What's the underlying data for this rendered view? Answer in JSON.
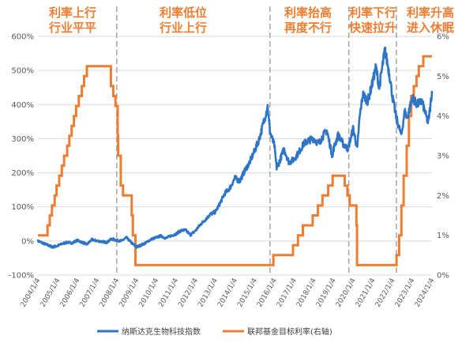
{
  "chart_data": {
    "type": "line",
    "title": "",
    "x_range": [
      "2004/1/4",
      "2024/1/4"
    ],
    "x_tick_labels": [
      "2004/1/4",
      "2005/1/4",
      "2006/1/4",
      "2007/1/4",
      "2008/1/4",
      "2009/1/4",
      "2010/1/4",
      "2011/1/4",
      "2012/1/4",
      "2013/1/4",
      "2014/1/4",
      "2015/1/4",
      "2016/1/4",
      "2017/1/4",
      "2018/1/4",
      "2019/1/4",
      "2020/1/4",
      "2021/1/4",
      "2022/1/4",
      "2023/1/4",
      "2024/1/4"
    ],
    "y_left": {
      "ticks": [
        -100,
        0,
        100,
        200,
        300,
        400,
        500,
        600
      ],
      "tick_labels": [
        "-100%",
        "0%",
        "100%",
        "200%",
        "300%",
        "400%",
        "500%",
        "600%"
      ],
      "range": [
        -100,
        600
      ]
    },
    "y_right": {
      "ticks": [
        0,
        1,
        2,
        3,
        4,
        5,
        6
      ],
      "tick_labels": [
        "0%",
        "1%",
        "2%",
        "3%",
        "4%",
        "5%",
        "6%"
      ],
      "range": [
        0,
        6
      ]
    },
    "grid": true,
    "legend_position": "bottom",
    "dividers": [
      "2008/1/4",
      "2015/10/15",
      "2019/10/15",
      "2022/3/15"
    ],
    "annotations": [
      {
        "lines": [
          "利率上行",
          "行业平平"
        ]
      },
      {
        "lines": [
          "利率低位",
          "行业上行"
        ]
      },
      {
        "lines": [
          "利率抬高",
          "再度不行"
        ]
      },
      {
        "lines": [
          "利率下行",
          "快速拉升"
        ]
      },
      {
        "lines": [
          "利率升高",
          "进入休眠"
        ]
      }
    ],
    "series": [
      {
        "name": "纳斯达克生物科技指数",
        "axis": "left",
        "color": "#2E75C8",
        "points": [
          [
            "2004-01-04",
            0
          ],
          [
            "2004-04-01",
            -6
          ],
          [
            "2004-07-01",
            -12
          ],
          [
            "2004-10-01",
            -18
          ],
          [
            "2005-01-04",
            -14
          ],
          [
            "2005-04-01",
            -8
          ],
          [
            "2005-07-01",
            -4
          ],
          [
            "2005-10-01",
            -6
          ],
          [
            "2006-01-04",
            2
          ],
          [
            "2006-04-01",
            -4
          ],
          [
            "2006-07-01",
            -10
          ],
          [
            "2006-10-01",
            4
          ],
          [
            "2007-01-04",
            0
          ],
          [
            "2007-04-01",
            -2
          ],
          [
            "2007-07-01",
            -4
          ],
          [
            "2007-10-01",
            6
          ],
          [
            "2008-01-04",
            2
          ],
          [
            "2008-04-01",
            0
          ],
          [
            "2008-07-01",
            10
          ],
          [
            "2008-10-01",
            -5
          ],
          [
            "2009-01-04",
            -18
          ],
          [
            "2009-04-01",
            -12
          ],
          [
            "2009-07-01",
            -5
          ],
          [
            "2009-10-01",
            5
          ],
          [
            "2010-01-04",
            10
          ],
          [
            "2010-04-01",
            15
          ],
          [
            "2010-07-01",
            8
          ],
          [
            "2010-10-01",
            15
          ],
          [
            "2011-01-04",
            20
          ],
          [
            "2011-04-01",
            30
          ],
          [
            "2011-07-01",
            32
          ],
          [
            "2011-10-01",
            18
          ],
          [
            "2012-01-04",
            30
          ],
          [
            "2012-04-01",
            48
          ],
          [
            "2012-07-01",
            62
          ],
          [
            "2012-10-01",
            78
          ],
          [
            "2013-01-04",
            85
          ],
          [
            "2013-04-01",
            110
          ],
          [
            "2013-07-01",
            140
          ],
          [
            "2013-10-01",
            155
          ],
          [
            "2014-01-04",
            185
          ],
          [
            "2014-04-01",
            175
          ],
          [
            "2014-07-01",
            205
          ],
          [
            "2014-10-01",
            230
          ],
          [
            "2015-01-04",
            265
          ],
          [
            "2015-04-01",
            300
          ],
          [
            "2015-07-01",
            355
          ],
          [
            "2015-09-01",
            395
          ],
          [
            "2015-10-15",
            320
          ],
          [
            "2016-01-04",
            280
          ],
          [
            "2016-02-15",
            215
          ],
          [
            "2016-04-01",
            230
          ],
          [
            "2016-07-01",
            270
          ],
          [
            "2016-10-01",
            230
          ],
          [
            "2017-01-04",
            240
          ],
          [
            "2017-04-01",
            260
          ],
          [
            "2017-07-01",
            285
          ],
          [
            "2017-10-01",
            295
          ],
          [
            "2018-01-04",
            300
          ],
          [
            "2018-04-01",
            285
          ],
          [
            "2018-07-01",
            310
          ],
          [
            "2018-09-01",
            325
          ],
          [
            "2018-12-20",
            245
          ],
          [
            "2019-01-04",
            270
          ],
          [
            "2019-04-01",
            310
          ],
          [
            "2019-07-01",
            285
          ],
          [
            "2019-10-01",
            270
          ],
          [
            "2020-01-04",
            330
          ],
          [
            "2020-03-20",
            270
          ],
          [
            "2020-05-01",
            360
          ],
          [
            "2020-07-01",
            430
          ],
          [
            "2020-10-01",
            410
          ],
          [
            "2021-01-04",
            470
          ],
          [
            "2021-03-01",
            510
          ],
          [
            "2021-05-01",
            450
          ],
          [
            "2021-08-15",
            560
          ],
          [
            "2021-10-01",
            520
          ],
          [
            "2021-11-15",
            480
          ],
          [
            "2022-01-04",
            420
          ],
          [
            "2022-03-15",
            360
          ],
          [
            "2022-06-15",
            310
          ],
          [
            "2022-08-15",
            380
          ],
          [
            "2022-10-01",
            360
          ],
          [
            "2023-01-04",
            420
          ],
          [
            "2023-04-01",
            400
          ],
          [
            "2023-07-01",
            410
          ],
          [
            "2023-10-25",
            345
          ],
          [
            "2023-12-01",
            390
          ],
          [
            "2024-01-04",
            440
          ]
        ]
      },
      {
        "name": "联邦基金目标利率(右轴)",
        "axis": "right",
        "color": "#ED7D31",
        "steps": [
          [
            "2004-01-04",
            1.0
          ],
          [
            "2004-06-30",
            1.25
          ],
          [
            "2004-08-10",
            1.5
          ],
          [
            "2004-09-21",
            1.75
          ],
          [
            "2004-11-10",
            2.0
          ],
          [
            "2004-12-14",
            2.25
          ],
          [
            "2005-02-02",
            2.5
          ],
          [
            "2005-03-22",
            2.75
          ],
          [
            "2005-05-03",
            3.0
          ],
          [
            "2005-06-30",
            3.25
          ],
          [
            "2005-08-09",
            3.5
          ],
          [
            "2005-09-20",
            3.75
          ],
          [
            "2005-11-01",
            4.0
          ],
          [
            "2005-12-13",
            4.25
          ],
          [
            "2006-01-31",
            4.5
          ],
          [
            "2006-03-28",
            4.75
          ],
          [
            "2006-05-10",
            5.0
          ],
          [
            "2006-06-29",
            5.25
          ],
          [
            "2007-09-18",
            4.75
          ],
          [
            "2007-10-31",
            4.5
          ],
          [
            "2007-12-11",
            4.25
          ],
          [
            "2008-01-22",
            3.5
          ],
          [
            "2008-01-30",
            3.0
          ],
          [
            "2008-03-18",
            2.25
          ],
          [
            "2008-04-30",
            2.0
          ],
          [
            "2008-10-08",
            1.5
          ],
          [
            "2008-10-29",
            1.0
          ],
          [
            "2008-12-16",
            0.25
          ],
          [
            "2015-12-17",
            0.5
          ],
          [
            "2016-12-15",
            0.75
          ],
          [
            "2017-03-16",
            1.0
          ],
          [
            "2017-06-15",
            1.25
          ],
          [
            "2017-12-14",
            1.5
          ],
          [
            "2018-03-22",
            1.75
          ],
          [
            "2018-06-14",
            2.0
          ],
          [
            "2018-09-27",
            2.25
          ],
          [
            "2018-12-20",
            2.5
          ],
          [
            "2019-08-01",
            2.25
          ],
          [
            "2019-09-19",
            2.0
          ],
          [
            "2019-10-31",
            1.75
          ],
          [
            "2020-03-04",
            1.25
          ],
          [
            "2020-03-16",
            0.25
          ],
          [
            "2022-03-17",
            0.5
          ],
          [
            "2022-05-05",
            1.0
          ],
          [
            "2022-06-16",
            1.75
          ],
          [
            "2022-07-28",
            2.5
          ],
          [
            "2022-09-22",
            3.25
          ],
          [
            "2022-11-03",
            4.0
          ],
          [
            "2022-12-15",
            4.5
          ],
          [
            "2023-02-02",
            4.75
          ],
          [
            "2023-03-23",
            5.0
          ],
          [
            "2023-05-04",
            5.25
          ],
          [
            "2023-07-27",
            5.5
          ],
          [
            "2024-01-04",
            5.5
          ]
        ]
      }
    ]
  }
}
